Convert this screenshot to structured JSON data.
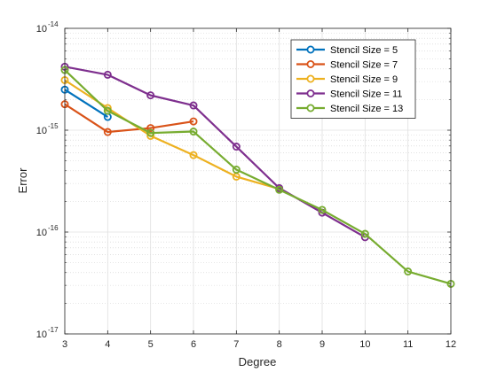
{
  "chart_data": {
    "type": "line",
    "xlabel": "Degree",
    "ylabel": "Error",
    "xlim": [
      3,
      12
    ],
    "ylim": [
      1e-17,
      1e-14
    ],
    "yscale": "log",
    "grid": true,
    "minor_grid": true,
    "legend_location": "top-right",
    "x_ticks": [
      "3",
      "4",
      "5",
      "6",
      "7",
      "8",
      "9",
      "10",
      "11",
      "12"
    ],
    "y_ticks": [
      {
        "base": "10",
        "exp": "-14",
        "value": 1e-14
      },
      {
        "base": "10",
        "exp": "-15",
        "value": 1e-15
      },
      {
        "base": "10",
        "exp": "-16",
        "value": 1e-16
      },
      {
        "base": "10",
        "exp": "-17",
        "value": 1e-17
      }
    ],
    "series": [
      {
        "name": "Stencil Size = 5",
        "color": "#0072BD",
        "x": [
          3,
          4
        ],
        "y": [
          2.5e-15,
          1.35e-15
        ]
      },
      {
        "name": "Stencil Size = 7",
        "color": "#D95319",
        "x": [
          3,
          4,
          5,
          6
        ],
        "y": [
          1.8e-15,
          9.6e-16,
          1.05e-15,
          1.22e-15
        ]
      },
      {
        "name": "Stencil Size = 9",
        "color": "#EDB120",
        "x": [
          3,
          4,
          5,
          6,
          7,
          8
        ],
        "y": [
          3.1e-15,
          1.65e-15,
          8.8e-16,
          5.7e-16,
          3.5e-16,
          2.65e-16
        ]
      },
      {
        "name": "Stencil Size = 11",
        "color": "#7E2F8E",
        "x": [
          3,
          4,
          5,
          6,
          7,
          8,
          9,
          10
        ],
        "y": [
          4.2e-15,
          3.5e-15,
          2.2e-15,
          1.75e-15,
          6.9e-16,
          2.7e-16,
          1.55e-16,
          8.9e-17
        ]
      },
      {
        "name": "Stencil Size = 13",
        "color": "#77AC30",
        "x": [
          3,
          4,
          5,
          6,
          7,
          8,
          9,
          10,
          11,
          12
        ],
        "y": [
          3.9e-15,
          1.55e-15,
          9.4e-16,
          9.7e-16,
          4.1e-16,
          2.6e-16,
          1.65e-16,
          9.6e-17,
          4.1e-17,
          3.1e-17
        ]
      }
    ]
  }
}
